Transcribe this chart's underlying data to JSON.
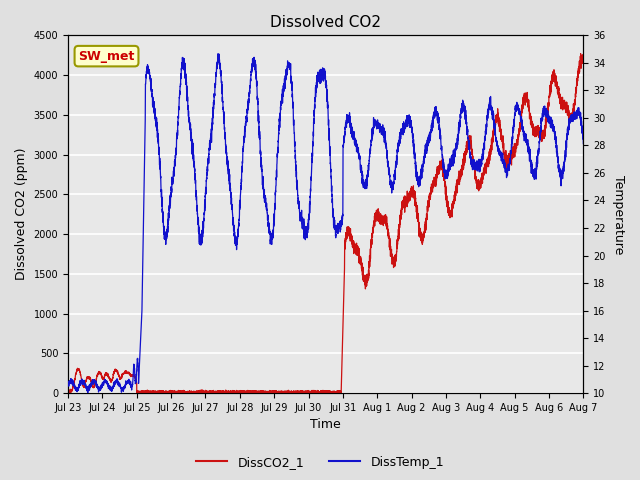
{
  "title": "Dissolved CO2",
  "xlabel": "Time",
  "ylabel_left": "Dissolved CO2 (ppm)",
  "ylabel_right": "Temperature",
  "ylim_left": [
    0,
    4500
  ],
  "ylim_right": [
    10,
    36
  ],
  "yticks_left": [
    0,
    500,
    1000,
    1500,
    2000,
    2500,
    3000,
    3500,
    4000,
    4500
  ],
  "yticks_right": [
    10,
    12,
    14,
    16,
    18,
    20,
    22,
    24,
    26,
    28,
    30,
    32,
    34,
    36
  ],
  "xtick_labels": [
    "Jul 23",
    "Jul 24",
    "Jul 25",
    "Jul 26",
    "Jul 27",
    "Jul 28",
    "Jul 29",
    "Jul 30",
    "Jul 31",
    "Aug 1",
    "Aug 2",
    "Aug 3",
    "Aug 4",
    "Aug 5",
    "Aug 6",
    "Aug 7"
  ],
  "legend_labels": [
    "DissCO2_1",
    "DissTemp_1"
  ],
  "line_color_co2": "#cc1111",
  "line_color_temp": "#1111cc",
  "fig_bg_color": "#e0e0e0",
  "plot_bg_color": "#e8e8e8",
  "grid_color": "#ffffff",
  "annotation_text": "SW_met",
  "annotation_bg": "#ffffcc",
  "annotation_border": "#999900"
}
